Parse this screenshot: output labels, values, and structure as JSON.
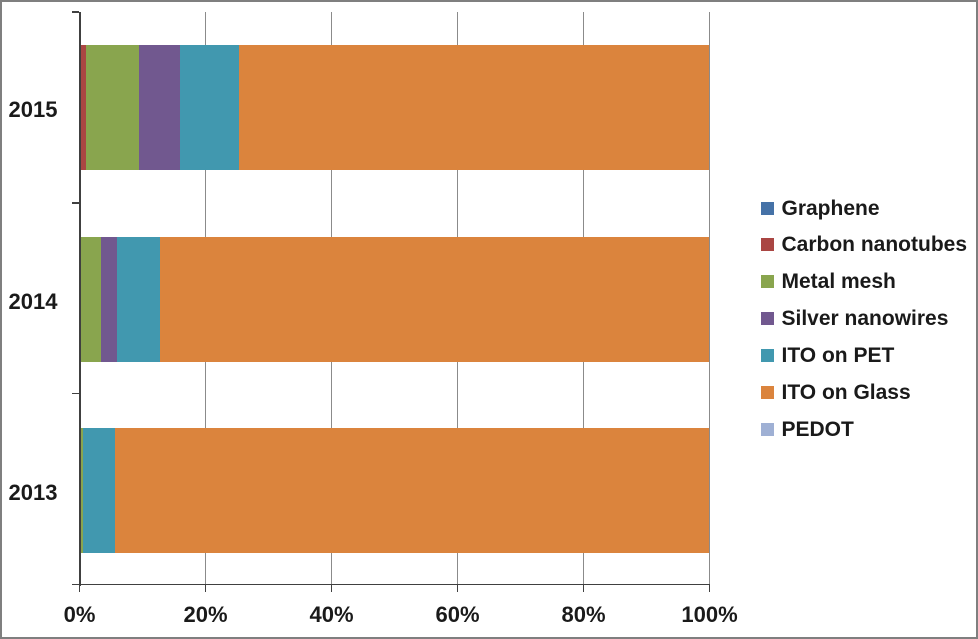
{
  "chart_data": {
    "type": "bar",
    "orientation": "horizontal",
    "stacking": "percent",
    "title": "",
    "xlabel": "",
    "ylabel": "",
    "categories": [
      "2015",
      "2014",
      "2013"
    ],
    "series": [
      {
        "name": "Graphene",
        "color": "#4572A7",
        "values": [
          0,
          0,
          0
        ]
      },
      {
        "name": "Carbon nanotubes",
        "color": "#AA4643",
        "values": [
          1.0,
          0,
          0
        ]
      },
      {
        "name": "Metal mesh",
        "color": "#89A54E",
        "values": [
          8.4,
          3.4,
          0.5
        ]
      },
      {
        "name": "Silver nanowires",
        "color": "#71588F",
        "values": [
          6.6,
          2.6,
          0
        ]
      },
      {
        "name": "ITO on PET",
        "color": "#4198AF",
        "values": [
          9.3,
          6.7,
          5.2
        ]
      },
      {
        "name": "ITO on Glass",
        "color": "#DB843D",
        "values": [
          74.7,
          87.3,
          94.3
        ]
      },
      {
        "name": "PEDOT",
        "color": "#9FB0D4",
        "values": [
          0,
          0,
          0
        ]
      }
    ],
    "x_axis": {
      "min": 0,
      "max": 100,
      "tick_values": [
        0,
        20,
        40,
        60,
        80,
        100
      ],
      "tick_labels": [
        "0%",
        "20%",
        "40%",
        "60%",
        "80%",
        "100%"
      ],
      "grid": true
    },
    "legend_position": "right"
  },
  "colors": {
    "background": "#FFFFFF",
    "frame_border": "#7F7F7F",
    "gridline": "#8B8B8B",
    "axis_line": "#404040",
    "text": "#1A1A1A"
  }
}
